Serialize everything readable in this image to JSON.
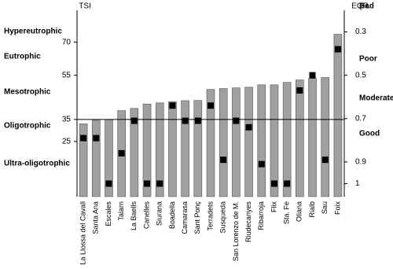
{
  "chart_data": {
    "type": "bar",
    "y_axis_label": "TSI",
    "y2_axis_label": "EQR",
    "categories": [
      "La Llossa del Cavall",
      "Santa Ana",
      "Escales",
      "Talarn",
      "La Baells",
      "Canelles",
      "Siurana",
      "Boadella",
      "Camarasa",
      "Sant Ponç",
      "Terradets",
      "Susqueda",
      "San Lorenzo de M.",
      "Riudecanyes",
      "Ribarroja",
      "Flix",
      "Sta. Fe",
      "Oliana",
      "Rialb",
      "Sau",
      "Foix"
    ],
    "series": [
      {
        "name": "TSI",
        "color": "#a0a0a0",
        "values": [
          33,
          34.6,
          35,
          39,
          40,
          42,
          42.5,
          43,
          43.5,
          43.6,
          48.6,
          49,
          49.3,
          49.6,
          50.7,
          50.7,
          51.8,
          52.9,
          53.6,
          54,
          73.6
        ]
      },
      {
        "name": "EQR",
        "color": "#000000",
        "axis": "y2",
        "values": [
          0.79,
          0.79,
          1.0,
          0.86,
          0.71,
          1.0,
          1.0,
          0.64,
          0.71,
          0.71,
          0.64,
          0.89,
          0.71,
          0.74,
          0.91,
          1.0,
          1.0,
          0.57,
          0.5,
          0.89,
          0.38
        ]
      }
    ],
    "ylim": [
      0,
      84.5
    ],
    "yticks": [
      25,
      35,
      55,
      70
    ],
    "y2lim": [
      1.06,
      0.2
    ],
    "y2ticks": [
      0.3,
      0.5,
      0.7,
      0.9,
      1.0
    ],
    "y_classes": [
      "Hypereutrophic",
      "Eutrophic",
      "Mesotrophic",
      "Oligotrophic",
      "Ultra-oligotrophic"
    ],
    "y2_classes": [
      "Bad",
      "Poor",
      "Moderate",
      "Good"
    ]
  }
}
